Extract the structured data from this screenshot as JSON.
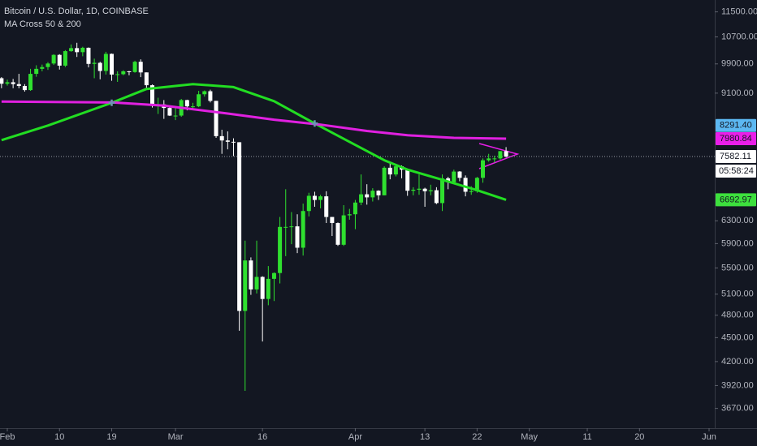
{
  "chart_data": {
    "type": "candlestick",
    "title": "Bitcoin / U.S. Dollar, 1D, COINBASE",
    "subtitle": "MA Cross 50 & 200",
    "log_scale": true,
    "up_color": "#2fe02f",
    "down_color": "#ffffff",
    "x": [
      -1,
      0,
      1,
      2,
      3,
      4,
      5,
      6,
      7,
      8,
      9,
      10,
      11,
      12,
      13,
      14,
      15,
      16,
      17,
      18,
      19,
      20,
      21,
      22,
      23,
      24,
      25,
      26,
      27,
      28,
      29,
      30,
      31,
      32,
      33,
      34,
      35,
      36,
      37,
      38,
      39,
      40,
      41,
      42,
      43,
      44,
      45,
      46,
      47,
      48,
      49,
      50,
      51,
      52,
      53,
      54,
      55,
      56,
      57,
      58,
      59,
      60,
      61,
      62,
      63,
      64,
      65,
      66,
      67,
      68,
      69,
      70,
      71,
      72,
      73,
      74,
      75,
      76,
      77,
      78,
      79,
      80,
      81,
      82,
      83,
      84,
      85,
      86
    ],
    "open": [
      9500,
      9350,
      9390,
      9340,
      9290,
      9180,
      9620,
      9760,
      9810,
      9910,
      10160,
      9850,
      10270,
      10360,
      10240,
      10370,
      9900,
      9930,
      9700,
      10190,
      9600,
      9610,
      9690,
      9670,
      9960,
      9660,
      9310,
      8790,
      8810,
      8720,
      8530,
      8530,
      8920,
      8760,
      8760,
      9070,
      9150,
      8900,
      8040,
      7940,
      7910,
      7900,
      4860,
      5620,
      5170,
      5360,
      5030,
      5330,
      5420,
      6190,
      6190,
      6200,
      5830,
      6480,
      6770,
      6690,
      6760,
      6370,
      6260,
      5880,
      6400,
      6420,
      6640,
      6800,
      6740,
      6870,
      6780,
      7340,
      7200,
      7370,
      7300,
      6870,
      6890,
      6910,
      6860,
      6880,
      6630,
      7120,
      7040,
      7260,
      7130,
      6850,
      6860,
      7130,
      7500,
      7540,
      7540,
      7700
    ],
    "high": [
      9530,
      9460,
      9480,
      9620,
      9340,
      9760,
      9860,
      9880,
      9950,
      10180,
      10180,
      10300,
      10470,
      10520,
      10400,
      10380,
      10050,
      9960,
      10250,
      10200,
      9690,
      9720,
      9700,
      9990,
      10030,
      9660,
      9330,
      8980,
      8920,
      8760,
      8750,
      8950,
      8930,
      8850,
      9160,
      9170,
      9190,
      8900,
      8190,
      8150,
      7990,
      7900,
      5950,
      5670,
      5950,
      5370,
      5530,
      5430,
      6370,
      6900,
      6460,
      6420,
      6620,
      6830,
      6850,
      6790,
      6860,
      6370,
      6270,
      6590,
      6520,
      6690,
      7200,
      7000,
      6920,
      6880,
      7370,
      7470,
      7420,
      7390,
      7300,
      6940,
      7200,
      6930,
      6990,
      6940,
      7200,
      7150,
      7300,
      7270,
      7180,
      6960,
      7150,
      7540,
      7640,
      7600,
      7700,
      7790
    ],
    "low": [
      9230,
      9300,
      9230,
      9230,
      9140,
      9160,
      9540,
      9690,
      9730,
      9870,
      9740,
      9810,
      10250,
      10100,
      10120,
      9800,
      9500,
      9470,
      9600,
      9430,
      9400,
      9580,
      9580,
      9650,
      9530,
      9240,
      8730,
      8570,
      8450,
      8520,
      8420,
      8500,
      8660,
      8670,
      8740,
      9010,
      8860,
      8000,
      7640,
      7740,
      7590,
      4590,
      3860,
      5090,
      5110,
      4450,
      4940,
      5000,
      5260,
      5690,
      5890,
      5740,
      5700,
      6380,
      6560,
      6530,
      6260,
      6030,
      5860,
      5860,
      6320,
      6150,
      6590,
      6600,
      6660,
      6690,
      6780,
      7100,
      7160,
      7120,
      6770,
      6780,
      6790,
      6560,
      6780,
      6610,
      6480,
      6900,
      7030,
      7060,
      6760,
      6790,
      6830,
      7030,
      7470,
      7450,
      7510,
      7560
    ],
    "close": [
      9350,
      9390,
      9340,
      9290,
      9180,
      9620,
      9760,
      9810,
      9910,
      10160,
      9850,
      10270,
      10360,
      10240,
      10370,
      9900,
      9930,
      9700,
      10190,
      9600,
      9610,
      9690,
      9670,
      9960,
      9660,
      9310,
      8790,
      8810,
      8720,
      8530,
      8530,
      8920,
      8760,
      8760,
      9070,
      9150,
      8900,
      8040,
      7940,
      7910,
      7900,
      4860,
      5620,
      5170,
      5360,
      5030,
      5330,
      5420,
      6190,
      6190,
      6200,
      5830,
      6480,
      6770,
      6690,
      6760,
      6370,
      6260,
      5880,
      6400,
      6420,
      6640,
      6800,
      6740,
      6870,
      6780,
      7340,
      7200,
      7370,
      7300,
      6870,
      6890,
      6910,
      6860,
      6880,
      6630,
      7120,
      7040,
      7260,
      7130,
      6850,
      6860,
      7130,
      7500,
      7540,
      7540,
      7700,
      7582.11
    ],
    "lines": [
      {
        "color": "#22dd22",
        "x": [
          -1,
          7,
          18,
          24,
          32,
          39,
          46,
          53,
          59,
          65,
          69,
          75,
          81,
          86
        ],
        "values": [
          7948,
          8290,
          8850,
          9210,
          9340,
          9260,
          8890,
          8340,
          7910,
          7500,
          7300,
          7090,
          6880,
          6692.97
        ]
      },
      {
        "color": "#e020e0",
        "x": [
          -1,
          18,
          27,
          38,
          46,
          54,
          62,
          69,
          77,
          86
        ],
        "values": [
          8880,
          8860,
          8780,
          8580,
          8430,
          8310,
          8160,
          8060,
          8000,
          7980.84
        ]
      }
    ],
    "crosses": {
      "color": "#6f93b4",
      "x": [
        18,
        53
      ],
      "values": [
        8850,
        8340
      ]
    },
    "xlim": [
      -1.26,
      121.98
    ],
    "xticks": [
      {
        "value": 0,
        "label": "Feb"
      },
      {
        "value": 9,
        "label": "10"
      },
      {
        "value": 18,
        "label": "19"
      },
      {
        "value": 29,
        "label": "Mar"
      },
      {
        "value": 44,
        "label": "16"
      },
      {
        "value": 60,
        "label": "Apr"
      },
      {
        "value": 72,
        "label": "13"
      },
      {
        "value": 81,
        "label": "22"
      },
      {
        "value": 90,
        "label": "May"
      },
      {
        "value": 100,
        "label": "11"
      },
      {
        "value": 109,
        "label": "20"
      },
      {
        "value": 121,
        "label": "Jun"
      }
    ],
    "ylim": [
      3467,
      11900
    ],
    "yticks": [
      {
        "value": 11500,
        "label": "11500.00"
      },
      {
        "value": 10700,
        "label": "10700.00"
      },
      {
        "value": 9900,
        "label": "9900.00"
      },
      {
        "value": 9100,
        "label": "9100.00"
      },
      {
        "value": 6300,
        "label": "6300.00"
      },
      {
        "value": 5900,
        "label": "5900.00"
      },
      {
        "value": 5500,
        "label": "5500.00"
      },
      {
        "value": 5100,
        "label": "5100.00"
      },
      {
        "value": 4800,
        "label": "4800.00"
      },
      {
        "value": 4500,
        "label": "4500.00"
      },
      {
        "value": 4200,
        "label": "4200.00"
      },
      {
        "value": 3920,
        "label": "3920.00"
      },
      {
        "value": 3670,
        "label": "3670.00"
      }
    ],
    "price_labels": [
      {
        "value": 8291.4,
        "label": "8291.40",
        "color": "#5cb8f2"
      },
      {
        "value": 7980.84,
        "label": "7980.84",
        "color": "#e91ee9"
      },
      {
        "value": 7582.11,
        "label": "7582.11",
        "color": "#ffffff"
      },
      {
        "value": 6692.97,
        "label": "6692.97",
        "color": "#3de03d"
      }
    ],
    "last_price": 7582.11,
    "countdown": "05:58:24"
  }
}
